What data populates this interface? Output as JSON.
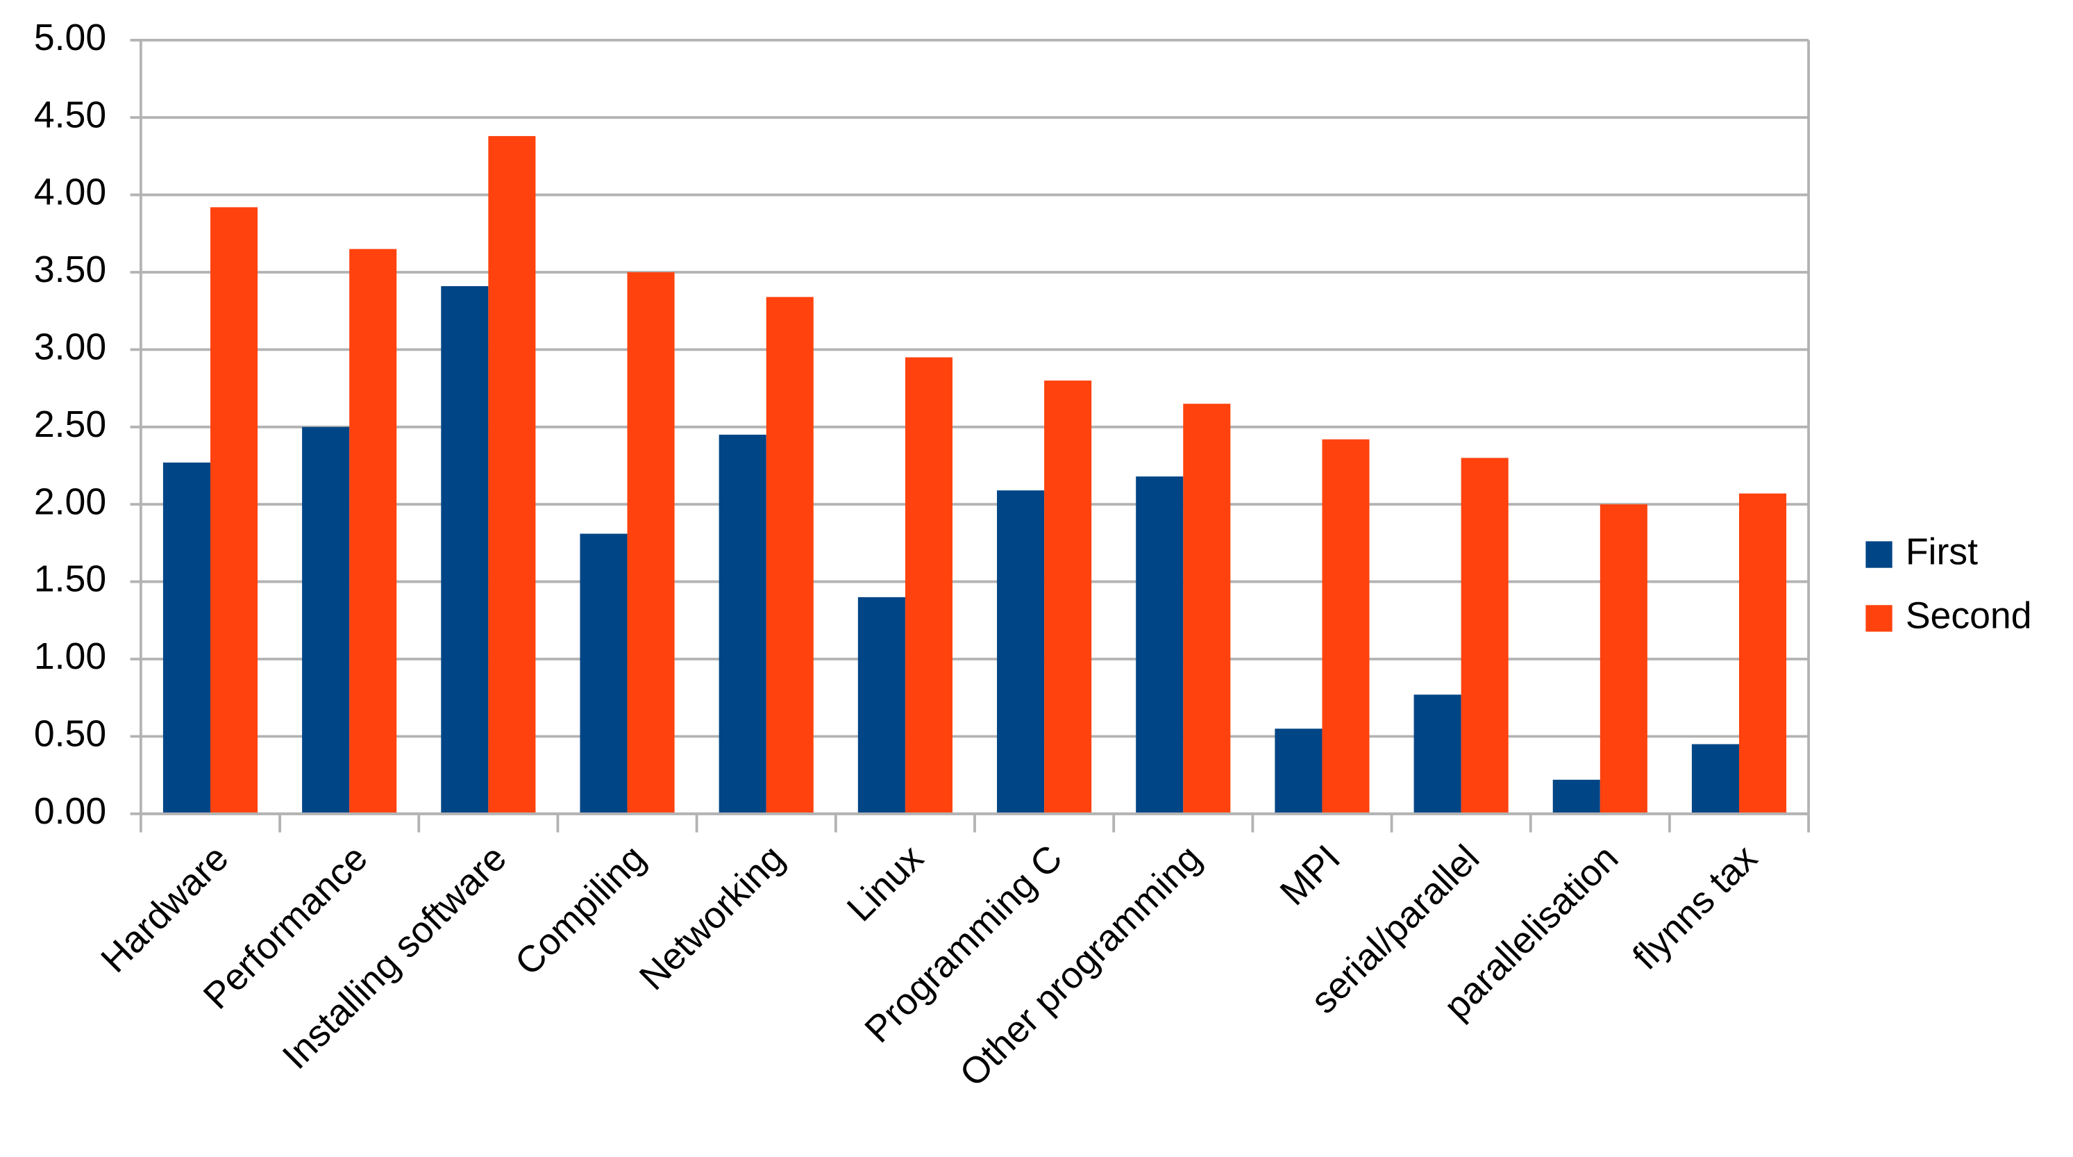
{
  "chart_data": {
    "type": "bar",
    "categories": [
      "Hardware",
      "Performance",
      "Installing software",
      "Compiling",
      "Networking",
      "Linux",
      "Programming C",
      "Other programming",
      "MPI",
      "serial/parallel",
      "parallelisation",
      "flynns tax"
    ],
    "series": [
      {
        "name": "First",
        "color": "#004586",
        "values": [
          2.27,
          2.5,
          3.41,
          1.81,
          2.45,
          1.4,
          2.09,
          2.18,
          0.55,
          0.77,
          0.22,
          0.45
        ]
      },
      {
        "name": "Second",
        "color": "#ff420e",
        "values": [
          3.92,
          3.65,
          4.38,
          3.5,
          3.34,
          2.95,
          2.8,
          2.65,
          2.42,
          2.3,
          2.0,
          2.07
        ]
      }
    ],
    "ylim": [
      0,
      5
    ],
    "yticks": [
      {
        "value": 0,
        "label": "0.00"
      },
      {
        "value": 0.5,
        "label": "0.50"
      },
      {
        "value": 1,
        "label": "1.00"
      },
      {
        "value": 1.5,
        "label": "1.50"
      },
      {
        "value": 2,
        "label": "2.00"
      },
      {
        "value": 2.5,
        "label": "2.50"
      },
      {
        "value": 3,
        "label": "3.00"
      },
      {
        "value": 3.5,
        "label": "3.50"
      },
      {
        "value": 4,
        "label": "4.00"
      },
      {
        "value": 4.5,
        "label": "4.50"
      },
      {
        "value": 5,
        "label": "5.00"
      }
    ],
    "grid": true,
    "legend": "right"
  }
}
